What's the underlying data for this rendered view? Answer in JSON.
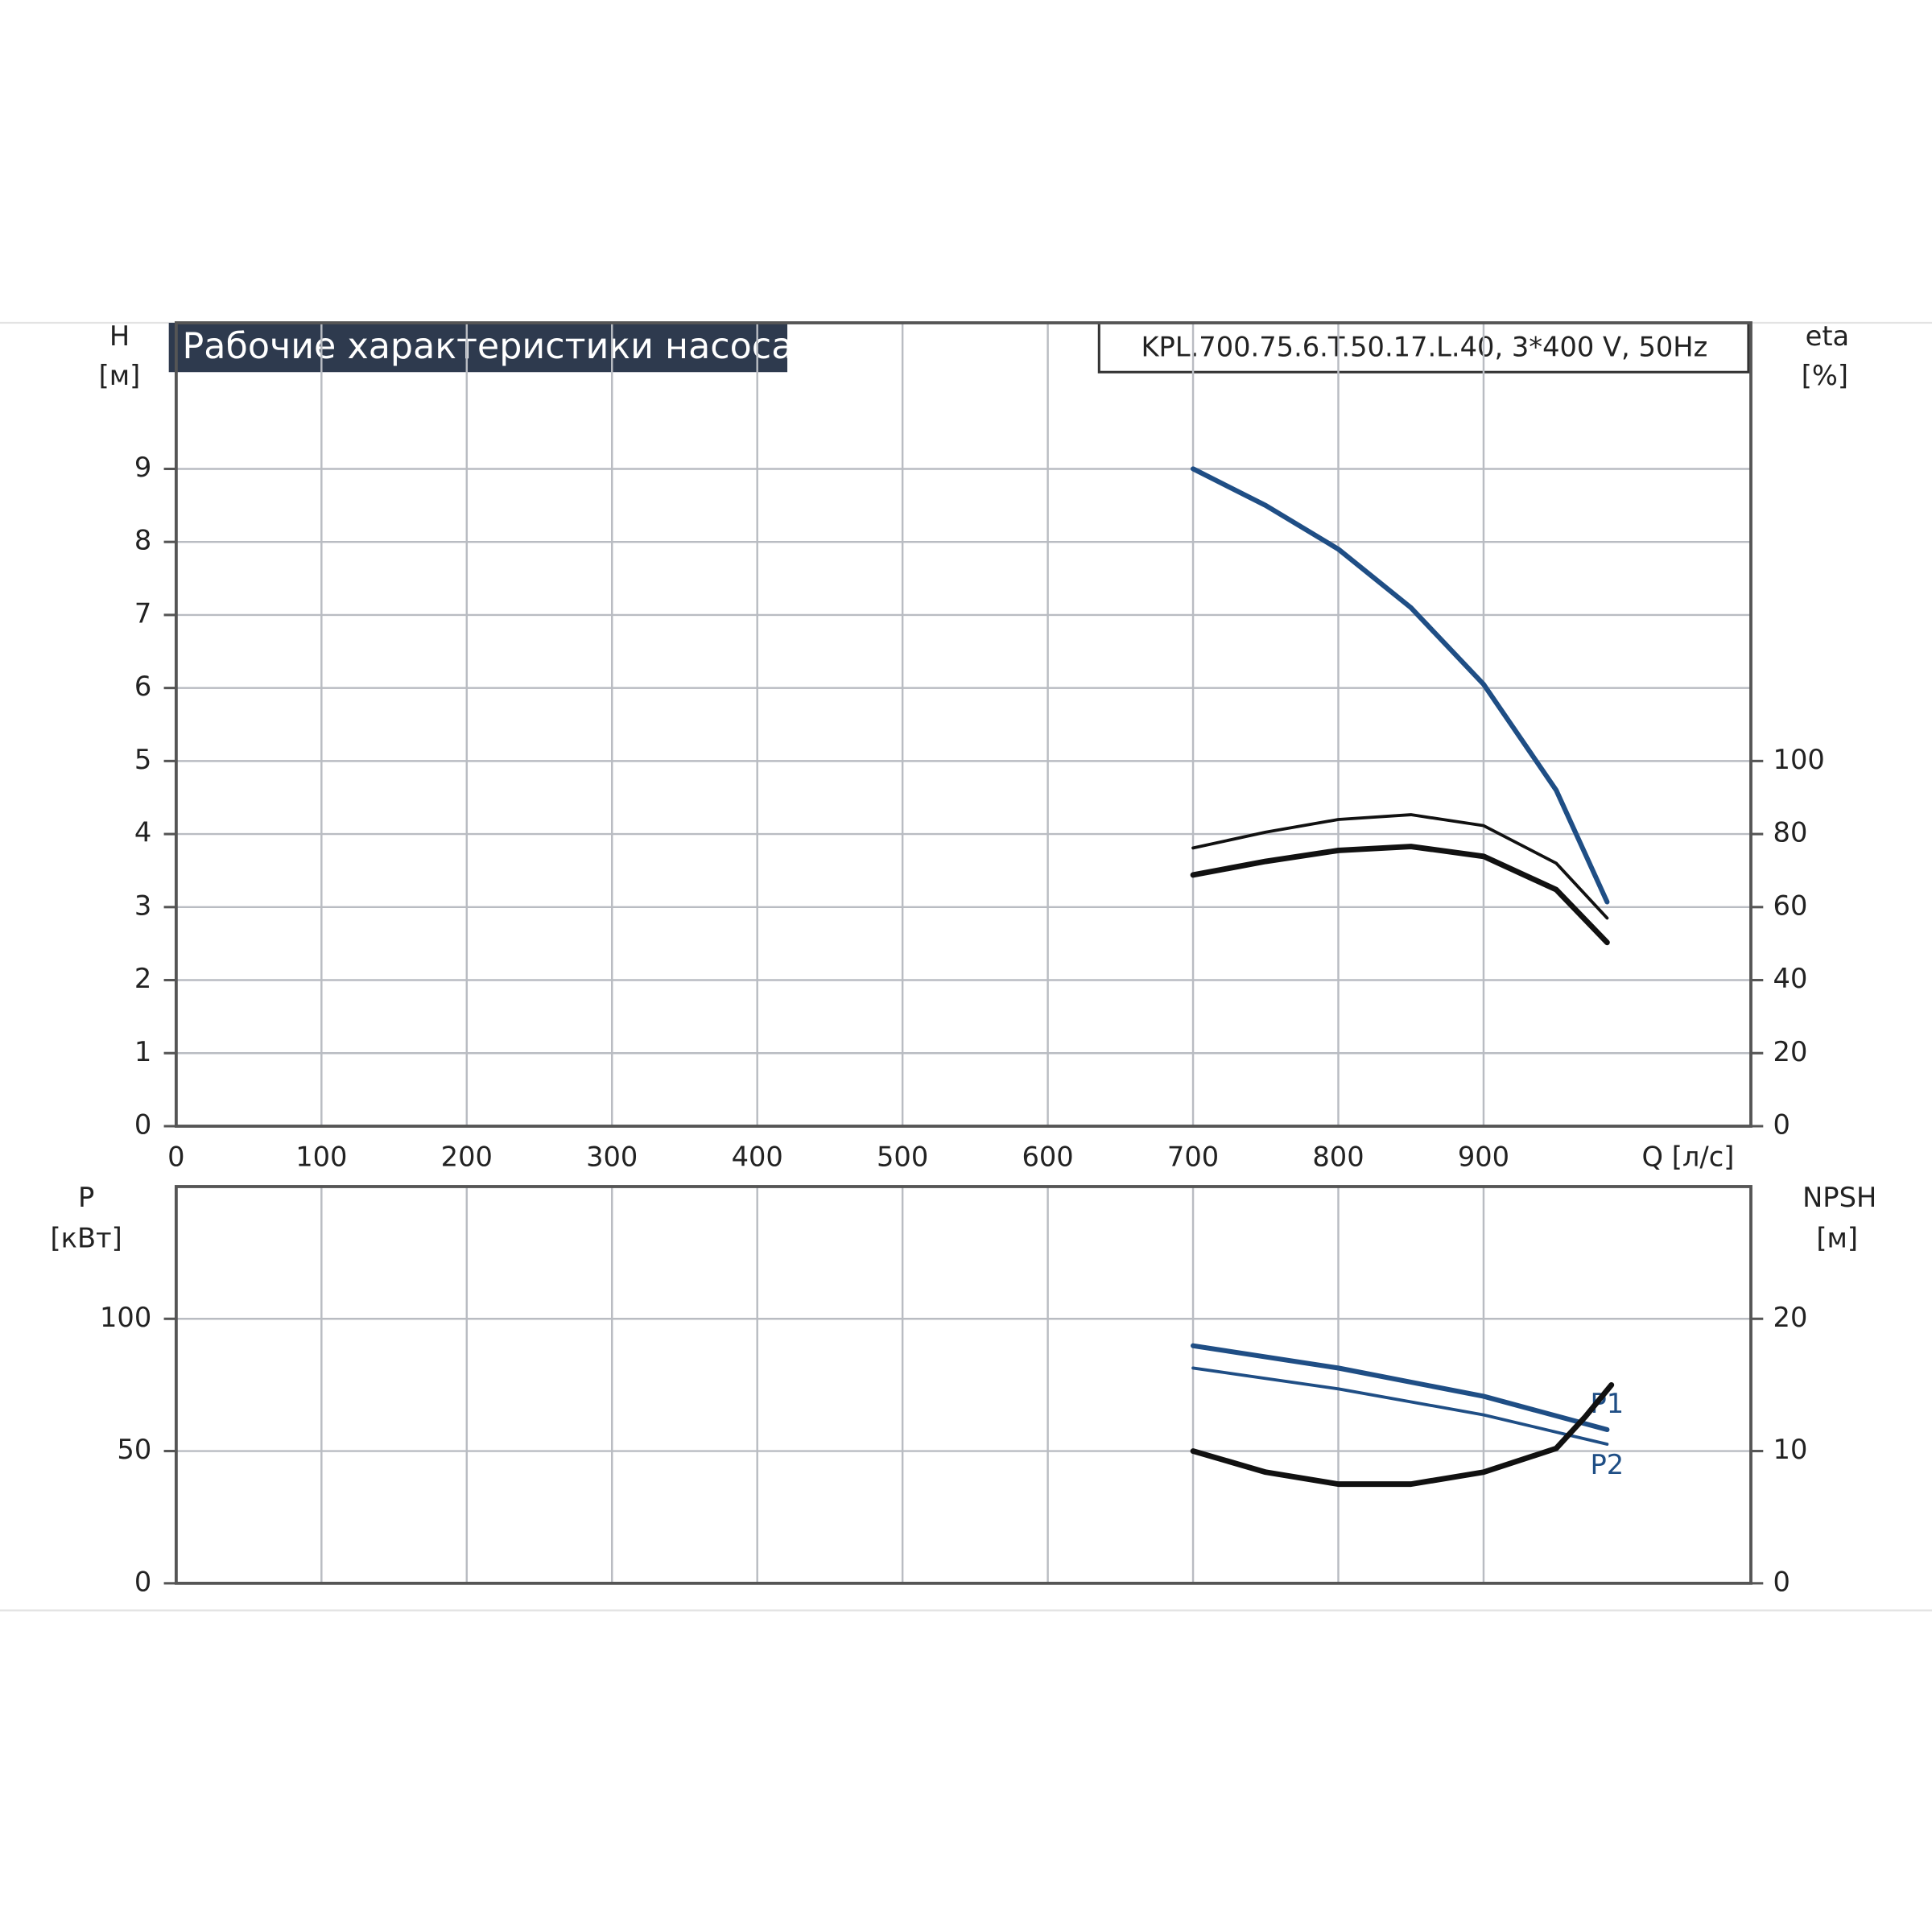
{
  "chart_data": [
    {
      "type": "line",
      "title": "Рабочие характеристики насоса",
      "subtitle": "KPL.700.75.6.T.50.17.L.40, 3*400 V, 50Hz",
      "ylabel": "H",
      "yunit": "[м]",
      "y2label": "eta",
      "y2unit": "[%]",
      "xlabel": "Q [л/с]",
      "xlim": [
        0,
        1084
      ],
      "xticks": [
        0,
        100,
        200,
        300,
        400,
        500,
        600,
        700,
        800,
        900
      ],
      "ylim": [
        0,
        11
      ],
      "yticks": [
        0,
        1,
        2,
        3,
        4,
        5,
        6,
        7,
        8,
        9
      ],
      "y2lim": [
        0,
        220
      ],
      "y2ticks": [
        0,
        20,
        40,
        60,
        80,
        100
      ],
      "grid": true,
      "series": [
        {
          "color": "#1f4e85",
          "x": [
            700,
            750,
            800,
            850,
            900,
            950,
            985
          ],
          "values": [
            9.0,
            8.5,
            7.9,
            7.1,
            6.05,
            4.6,
            3.07
          ]
        },
        {
          "color": "#111111",
          "axis": "y2",
          "x": [
            700,
            750,
            800,
            850,
            900,
            950,
            985
          ],
          "values": [
            76.2,
            80.5,
            84,
            85.3,
            82.3,
            72,
            57
          ]
        },
        {
          "color": "#111111",
          "axis": "y2",
          "x": [
            700,
            750,
            800,
            850,
            900,
            950,
            985
          ],
          "values": [
            68.8,
            72.5,
            75.5,
            76.6,
            73.9,
            64.8,
            50.3
          ]
        }
      ]
    },
    {
      "type": "line",
      "ylabel": "P",
      "yunit": "[кВт]",
      "y2label": "NPSH",
      "y2unit": "[м]",
      "xlim": [
        0,
        1084
      ],
      "ylim": [
        0,
        150
      ],
      "yticks": [
        0,
        50,
        100
      ],
      "y2lim": [
        0,
        30
      ],
      "y2ticks": [
        0,
        10,
        20
      ],
      "grid": true,
      "series": [
        {
          "name": "P1",
          "color": "#1f4e85",
          "x": [
            700,
            800,
            900,
            985
          ],
          "values": [
            89.8,
            81.4,
            70.7,
            58.1
          ]
        },
        {
          "name": "P2",
          "color": "#1f4e85",
          "x": [
            700,
            800,
            900,
            985
          ],
          "values": [
            81.4,
            73.5,
            63.7,
            52.6
          ]
        },
        {
          "color": "#111111",
          "axis": "y2",
          "x": [
            700,
            750,
            800,
            850,
            900,
            950,
            970,
            988
          ],
          "values": [
            10.0,
            8.4,
            7.5,
            7.5,
            8.4,
            10.2,
            12.6,
            15.0
          ]
        }
      ]
    }
  ]
}
